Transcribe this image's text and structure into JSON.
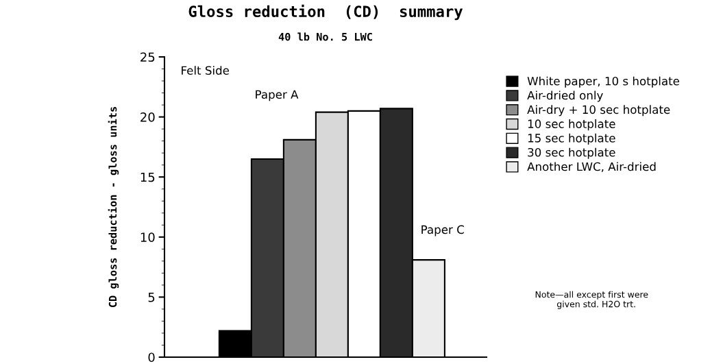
{
  "chart_data": {
    "type": "bar",
    "title": "Gloss reduction  (CD)  summary",
    "subtitle": "40 lb No. 5 LWC",
    "ylabel": "CD gloss reduction - gloss units",
    "categories": [
      null
    ],
    "ylim": [
      0,
      25
    ],
    "yticks": [
      0,
      5,
      10,
      15,
      20,
      25
    ],
    "grid": false,
    "legend": "right",
    "series": [
      {
        "name": "White paper, 10 s hotplate",
        "color": "#000000",
        "values": [
          2.2
        ]
      },
      {
        "name": "Air-dried only",
        "color": "#3a3a3a",
        "values": [
          16.5
        ]
      },
      {
        "name": "Air-dry + 10 sec hotplate",
        "color": "#8c8c8c",
        "values": [
          18.1
        ]
      },
      {
        "name": "10 sec hotplate",
        "color": "#d8d8d8",
        "values": [
          20.4
        ]
      },
      {
        "name": "15 sec hotplate",
        "color": "#ffffff",
        "values": [
          20.5
        ]
      },
      {
        "name": "30 sec hotplate",
        "color": "#2a2a2a",
        "values": [
          20.7
        ]
      },
      {
        "name": "Another LWC, Air-dried",
        "color": "#ececec",
        "values": [
          8.1
        ]
      }
    ],
    "annotations": [
      "Felt Side",
      "Paper A",
      "Paper C",
      "Note—all except first were\n        given std. H2O trt."
    ]
  }
}
